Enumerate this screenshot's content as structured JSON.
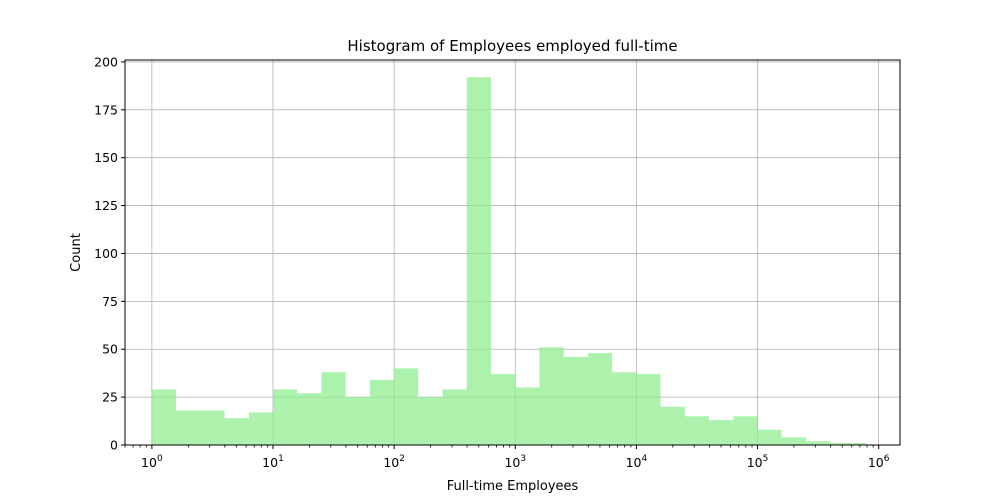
{
  "chart_data": {
    "type": "bar",
    "title": "Histogram of Employees employed full-time",
    "xlabel": "Full-time Employees",
    "ylabel": "Count",
    "x_scale": "log",
    "xlim": [
      0.6,
      1500000
    ],
    "ylim": [
      0,
      201
    ],
    "grid": true,
    "bar_color": "#90ee90",
    "x_ticks": [
      {
        "value": 1,
        "base": "10",
        "exp": "0"
      },
      {
        "value": 10,
        "base": "10",
        "exp": "1"
      },
      {
        "value": 100,
        "base": "10",
        "exp": "2"
      },
      {
        "value": 1000,
        "base": "10",
        "exp": "3"
      },
      {
        "value": 10000,
        "base": "10",
        "exp": "4"
      },
      {
        "value": 100000,
        "base": "10",
        "exp": "5"
      },
      {
        "value": 1000000,
        "base": "10",
        "exp": "6"
      }
    ],
    "y_ticks": [
      {
        "value": 0,
        "label": "0"
      },
      {
        "value": 25,
        "label": "25"
      },
      {
        "value": 50,
        "label": "50"
      },
      {
        "value": 75,
        "label": "75"
      },
      {
        "value": 100,
        "label": "100"
      },
      {
        "value": 125,
        "label": "125"
      },
      {
        "value": 150,
        "label": "150"
      },
      {
        "value": 175,
        "label": "175"
      },
      {
        "value": 200,
        "label": "200"
      }
    ],
    "bins": [
      {
        "x0": 1,
        "x1": 1.58,
        "count": 29
      },
      {
        "x0": 1.58,
        "x1": 2.51,
        "count": 18
      },
      {
        "x0": 2.51,
        "x1": 3.98,
        "count": 18
      },
      {
        "x0": 3.98,
        "x1": 6.31,
        "count": 14
      },
      {
        "x0": 6.31,
        "x1": 10,
        "count": 17
      },
      {
        "x0": 10,
        "x1": 15.8,
        "count": 29
      },
      {
        "x0": 15.8,
        "x1": 25.1,
        "count": 27
      },
      {
        "x0": 25.1,
        "x1": 39.8,
        "count": 38
      },
      {
        "x0": 39.8,
        "x1": 63.1,
        "count": 25
      },
      {
        "x0": 63.1,
        "x1": 100,
        "count": 34
      },
      {
        "x0": 100,
        "x1": 158,
        "count": 40
      },
      {
        "x0": 158,
        "x1": 251,
        "count": 25
      },
      {
        "x0": 251,
        "x1": 398,
        "count": 29
      },
      {
        "x0": 398,
        "x1": 631,
        "count": 192
      },
      {
        "x0": 631,
        "x1": 1000,
        "count": 37
      },
      {
        "x0": 1000,
        "x1": 1580,
        "count": 30
      },
      {
        "x0": 1580,
        "x1": 2510,
        "count": 51
      },
      {
        "x0": 2510,
        "x1": 3980,
        "count": 46
      },
      {
        "x0": 3980,
        "x1": 6310,
        "count": 48
      },
      {
        "x0": 6310,
        "x1": 10000,
        "count": 38
      },
      {
        "x0": 10000,
        "x1": 15800,
        "count": 37
      },
      {
        "x0": 15800,
        "x1": 25100,
        "count": 20
      },
      {
        "x0": 25100,
        "x1": 39800,
        "count": 15
      },
      {
        "x0": 39800,
        "x1": 63100,
        "count": 13
      },
      {
        "x0": 63100,
        "x1": 100000,
        "count": 15
      },
      {
        "x0": 100000,
        "x1": 158000,
        "count": 8
      },
      {
        "x0": 158000,
        "x1": 251000,
        "count": 4
      },
      {
        "x0": 251000,
        "x1": 398000,
        "count": 2
      },
      {
        "x0": 398000,
        "x1": 631000,
        "count": 1
      },
      {
        "x0": 631000,
        "x1": 794000,
        "count": 1
      }
    ]
  }
}
